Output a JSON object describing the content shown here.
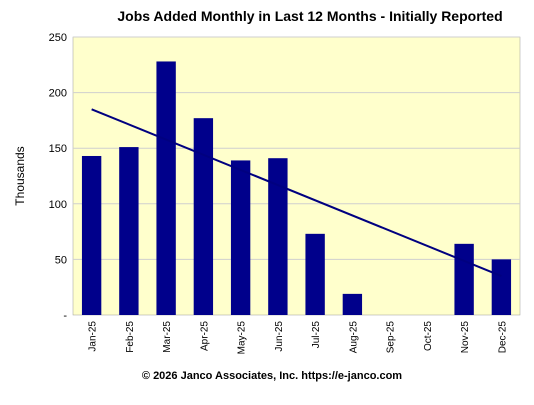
{
  "chart_data": {
    "type": "bar",
    "title": "Jobs Added Monthly in Last 12 Months - Initially Reported",
    "ylabel": "Thousands",
    "xlabel": "",
    "categories": [
      "Jan-25",
      "Feb-25",
      "Mar-25",
      "Apr-25",
      "May-25",
      "Jun-25",
      "Jul-25",
      "Aug-25",
      "Sep-25",
      "Oct-25",
      "Nov-25",
      "Dec-25"
    ],
    "values": [
      143,
      151,
      228,
      177,
      139,
      141,
      73,
      19,
      null,
      null,
      64,
      50
    ],
    "ylim": [
      0,
      250
    ],
    "yticks": [
      "-",
      "50",
      "100",
      "150",
      "200",
      "250"
    ],
    "yticks_values": [
      0,
      50,
      100,
      150,
      200,
      250
    ],
    "trendline": {
      "start_value": 185,
      "end_value": 35
    },
    "grid": true,
    "colors": {
      "bar": "#00008B",
      "trend": "#000080",
      "plot_bg": "#FFFFCC",
      "grid": "#CFCFCF"
    },
    "footer": "© 2026 Janco Associates, Inc. https://e-janco.com"
  }
}
